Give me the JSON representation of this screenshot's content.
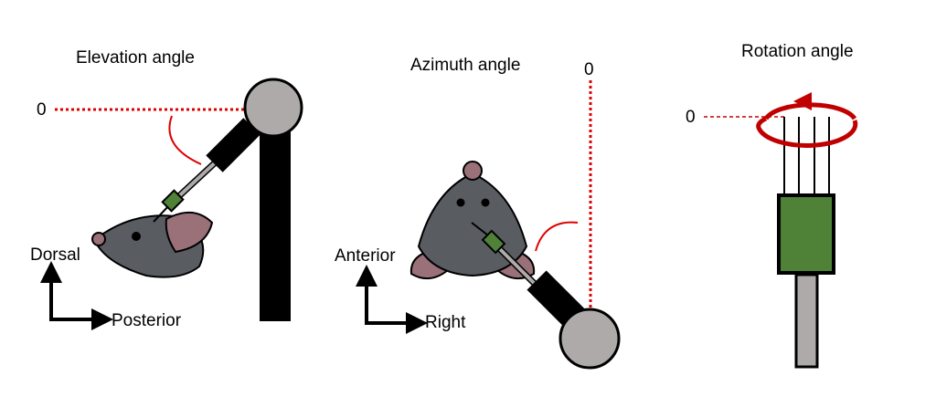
{
  "panels": {
    "elevation": {
      "title": "Elevation angle",
      "zero": "0",
      "axis_up": "Dorsal",
      "axis_right": "Posterior"
    },
    "azimuth": {
      "title": "Azimuth angle",
      "zero": "0",
      "axis_up": "Anterior",
      "axis_right": "Right"
    },
    "rotation": {
      "title": "Rotation angle",
      "zero": "0"
    }
  },
  "colors": {
    "mouse_body": "#595c61",
    "mouse_ear": "#9a7079",
    "probe_joint": "#aeaaaa",
    "probe_arm": "#000000",
    "probe_shank": "#4f8137",
    "reference_line": "#e00000",
    "rotation_arrow": "#c00000"
  }
}
